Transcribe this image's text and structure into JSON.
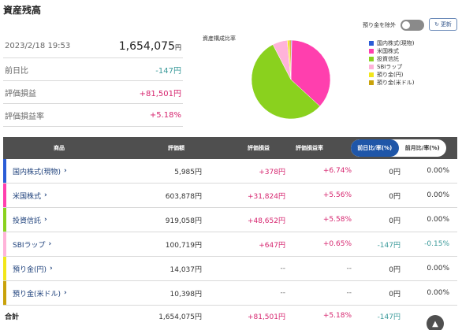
{
  "title": "資産残高",
  "summary": {
    "datetime": "2023/2/18 19:53",
    "total": "1,654,075",
    "total_unit": "円",
    "rows": [
      {
        "label": "前日比",
        "value": "-147円",
        "sign": "neg"
      },
      {
        "label": "評価損益",
        "value": "+81,501円",
        "sign": "pos"
      },
      {
        "label": "評価損益率",
        "value": "+5.18%",
        "sign": "pos"
      }
    ]
  },
  "pie": {
    "title": "資産構成比率",
    "slices": [
      {
        "name": "国内株式(現物)",
        "value": 5985,
        "color": "#2b5cd6"
      },
      {
        "name": "米国株式",
        "value": 603878,
        "color": "#ff3fae"
      },
      {
        "name": "投資信託",
        "value": 919058,
        "color": "#8ad11e"
      },
      {
        "name": "SBIラップ",
        "value": 100719,
        "color": "#ffb3d9"
      },
      {
        "name": "預り金(円)",
        "value": 14037,
        "color": "#f2e61a"
      },
      {
        "name": "預り金(米ドル)",
        "value": 10398,
        "color": "#c9a20a"
      }
    ]
  },
  "controls": {
    "toggle_label": "預り金を除外",
    "refresh_label": "更新",
    "refresh_icon": "refresh-icon"
  },
  "table": {
    "headers": {
      "product": "商品",
      "valuation": "評価額",
      "pl": "評価損益",
      "pl_rate": "評価損益率"
    },
    "tabs": [
      {
        "label": "前日比/率(%)",
        "active": true
      },
      {
        "label": "前月比/率(%)",
        "active": false
      }
    ],
    "rows": [
      {
        "name": "国内株式(現物)",
        "color": "#2b5cd6",
        "valuation": "5,985円",
        "pl": "+378円",
        "pl_rate": "+6.74%",
        "diff": "0円",
        "diff_rate": "0.00%"
      },
      {
        "name": "米国株式",
        "color": "#ff3fae",
        "valuation": "603,878円",
        "pl": "+31,824円",
        "pl_rate": "+5.56%",
        "diff": "0円",
        "diff_rate": "0.00%"
      },
      {
        "name": "投資信託",
        "color": "#8ad11e",
        "valuation": "919,058円",
        "pl": "+48,652円",
        "pl_rate": "+5.58%",
        "diff": "0円",
        "diff_rate": "0.00%"
      },
      {
        "name": "SBIラップ",
        "color": "#ffb3d9",
        "valuation": "100,719円",
        "pl": "+647円",
        "pl_rate": "+0.65%",
        "diff": "-147円",
        "diff_rate": "-0.15%"
      },
      {
        "name": "預り金(円)",
        "color": "#f2e61a",
        "valuation": "14,037円",
        "pl": "--",
        "pl_rate": "--",
        "diff": "0円",
        "diff_rate": "0.00%"
      },
      {
        "name": "預り金(米ドル)",
        "color": "#c9a20a",
        "valuation": "10,398円",
        "pl": "--",
        "pl_rate": "--",
        "diff": "0円",
        "diff_rate": "0.00%"
      }
    ],
    "total": {
      "name": "合計",
      "valuation": "1,654,075円",
      "pl": "+81,501円",
      "pl_rate": "+5.18%",
      "diff": "-147円",
      "diff_rate": "0.00%"
    }
  }
}
